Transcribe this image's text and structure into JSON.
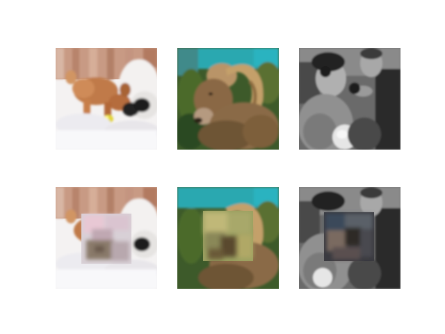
{
  "figure": {
    "layout": "2x3 image grid",
    "background": "#ffffff",
    "rows": [
      {
        "row": "original",
        "panels": [
          {
            "name": "panel-dog",
            "subject": "dog-in-snow-with-ball",
            "masked": false
          },
          {
            "name": "panel-ram",
            "subject": "bighorn-ram",
            "masked": false
          },
          {
            "name": "panel-couple",
            "subject": "grayscale-elderly-couple",
            "masked": false
          }
        ]
      },
      {
        "row": "masked",
        "panels": [
          {
            "name": "panel-dog-masked",
            "subject": "dog-in-snow-with-ball",
            "masked": true,
            "patch_palette": [
              "#e8c8d4",
              "#8a7a6a",
              "#d8d0d6"
            ]
          },
          {
            "name": "panel-ram-masked",
            "subject": "bighorn-ram",
            "masked": true,
            "patch_palette": [
              "#b8b070",
              "#5a4a2e",
              "#9aa060"
            ]
          },
          {
            "name": "panel-couple-masked",
            "subject": "grayscale-elderly-couple",
            "masked": true,
            "patch_palette": [
              "#3a4a5a",
              "#7a6a60",
              "#2e2a28"
            ]
          }
        ]
      }
    ]
  }
}
